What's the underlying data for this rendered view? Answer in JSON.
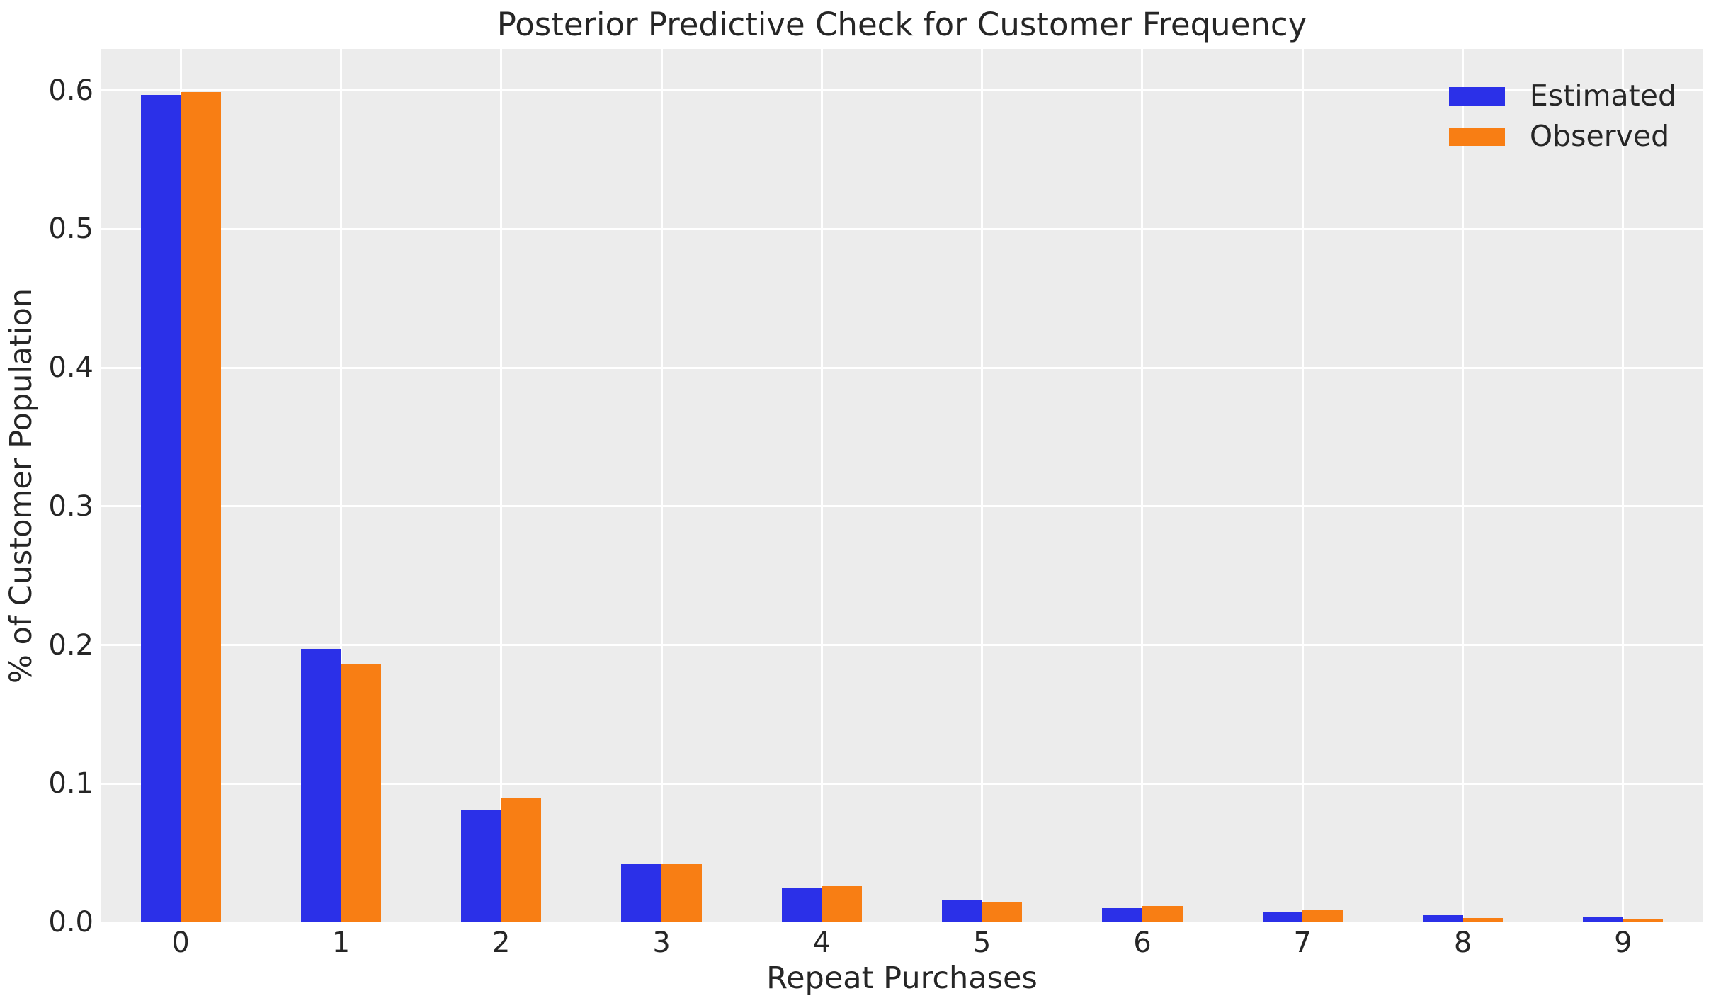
{
  "chart_data": {
    "type": "bar",
    "title": "Posterior Predictive Check for Customer Frequency",
    "xlabel": "Repeat Purchases",
    "ylabel": "% of Customer Population",
    "categories": [
      "0",
      "1",
      "2",
      "3",
      "4",
      "5",
      "6",
      "7",
      "8",
      "9"
    ],
    "series": [
      {
        "name": "Estimated",
        "color": "#2b30e8",
        "values": [
          0.597,
          0.197,
          0.081,
          0.042,
          0.025,
          0.016,
          0.01,
          0.007,
          0.005,
          0.004
        ]
      },
      {
        "name": "Observed",
        "color": "#f87e14",
        "values": [
          0.599,
          0.186,
          0.09,
          0.042,
          0.026,
          0.015,
          0.012,
          0.009,
          0.003,
          0.002
        ]
      }
    ],
    "ylim": [
      0,
      0.63
    ],
    "yticks": [
      0.0,
      0.1,
      0.2,
      0.3,
      0.4,
      0.5,
      0.6
    ],
    "ytick_labels": [
      "0.0",
      "0.1",
      "0.2",
      "0.3",
      "0.4",
      "0.5",
      "0.6"
    ],
    "grid": "on",
    "legend_position": "upper right",
    "plot_background": "#ececec",
    "grid_color": "#ffffff",
    "text_color": "#262626"
  }
}
